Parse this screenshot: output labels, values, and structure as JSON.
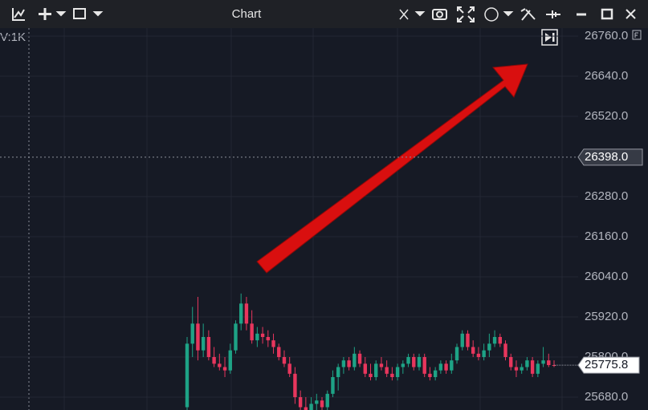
{
  "toolbar": {
    "title": "Chart"
  },
  "chart_data": {
    "type": "candlestick",
    "legend_text": "V:1K",
    "categories": [
      null,
      null,
      null,
      null,
      null,
      null,
      null,
      null,
      null,
      null,
      null,
      null,
      null,
      null,
      null,
      null,
      null,
      null,
      null,
      null,
      null,
      null,
      null,
      null,
      null,
      null,
      null,
      null,
      null,
      null,
      null,
      null,
      null,
      null,
      null,
      null,
      null,
      null,
      null,
      null,
      null,
      null,
      null,
      null,
      null,
      null,
      null,
      null,
      null,
      null,
      null,
      null,
      null,
      null,
      null,
      null,
      null,
      null,
      null,
      null,
      null,
      null,
      null,
      null,
      null,
      null,
      null,
      null,
      null
    ],
    "open": [
      25650,
      25840,
      25900,
      25820,
      25860,
      25800,
      25780,
      25770,
      25760,
      25820,
      25900,
      25960,
      25900,
      25850,
      25870,
      25860,
      25850,
      25830,
      25800,
      25780,
      25750,
      25680,
      25650,
      25640,
      25660,
      25670,
      25650,
      25690,
      25740,
      25770,
      25790,
      25770,
      25810,
      25780,
      25750,
      25740,
      25780,
      25770,
      25750,
      25740,
      25770,
      25780,
      25800,
      25770,
      25800,
      25750,
      25740,
      25760,
      25780,
      25760,
      25790,
      25830,
      25870,
      25830,
      25810,
      25800,
      25820,
      25840,
      25860,
      25840,
      25800,
      25770,
      25760,
      25770,
      25790,
      25750,
      25780,
      25790,
      25776
    ],
    "high": [
      25860,
      25950,
      25980,
      25900,
      25880,
      25830,
      25810,
      25800,
      25840,
      25910,
      25990,
      25980,
      25940,
      25890,
      25890,
      25880,
      25870,
      25840,
      25820,
      25800,
      25770,
      25700,
      25680,
      25680,
      25690,
      25680,
      25700,
      25760,
      25780,
      25800,
      25800,
      25830,
      25820,
      25800,
      25780,
      25790,
      25800,
      25790,
      25770,
      25780,
      25790,
      25810,
      25810,
      25810,
      25810,
      25770,
      25770,
      25790,
      25790,
      25810,
      25840,
      25880,
      25880,
      25850,
      25830,
      25840,
      25870,
      25880,
      25870,
      25850,
      25810,
      25790,
      25780,
      25800,
      25800,
      25790,
      25830,
      25810,
      25790
    ],
    "low": [
      25640,
      25800,
      25790,
      25800,
      25790,
      25770,
      25760,
      25740,
      25750,
      25810,
      25880,
      25880,
      25840,
      25830,
      25840,
      25830,
      25810,
      25790,
      25770,
      25740,
      25660,
      25640,
      25630,
      25630,
      25640,
      25640,
      25640,
      25680,
      25700,
      25750,
      25760,
      25760,
      25770,
      25740,
      25730,
      25730,
      25760,
      25740,
      25730,
      25730,
      25750,
      25770,
      25760,
      25760,
      25740,
      25730,
      25730,
      25750,
      25750,
      25750,
      25780,
      25820,
      25820,
      25800,
      25790,
      25790,
      25800,
      25830,
      25830,
      25790,
      25760,
      25740,
      25750,
      25760,
      25740,
      25740,
      25770,
      25770,
      25770
    ],
    "close": [
      25840,
      25900,
      25820,
      25860,
      25800,
      25780,
      25770,
      25760,
      25820,
      25900,
      25960,
      25900,
      25850,
      25870,
      25860,
      25850,
      25830,
      25800,
      25780,
      25750,
      25680,
      25650,
      25640,
      25660,
      25670,
      25650,
      25690,
      25740,
      25770,
      25790,
      25770,
      25810,
      25780,
      25750,
      25740,
      25780,
      25770,
      25750,
      25740,
      25770,
      25780,
      25800,
      25770,
      25800,
      25750,
      25740,
      25760,
      25780,
      25760,
      25790,
      25830,
      25870,
      25830,
      25810,
      25800,
      25820,
      25840,
      25860,
      25840,
      25800,
      25770,
      25760,
      25770,
      25790,
      25750,
      25780,
      25790,
      25776,
      25775.8
    ],
    "up_color": "#1ea386",
    "down_color": "#e8365d",
    "ylim": [
      25641.6,
      26784
    ],
    "yticks": [
      {
        "value": 26760,
        "label": "26760.0"
      },
      {
        "value": 26640,
        "label": "26640.0"
      },
      {
        "value": 26520,
        "label": "26520.0"
      },
      {
        "value": 26280,
        "label": "26280.0"
      },
      {
        "value": 26160,
        "label": "26160.0"
      },
      {
        "value": 26040,
        "label": "26040.0"
      },
      {
        "value": 25920,
        "label": "25920.0"
      },
      {
        "value": 25800,
        "label": "25800.0"
      },
      {
        "value": 25680,
        "label": "25680.0"
      }
    ],
    "crosshair_price": {
      "value": 26398,
      "label": "26398.0"
    },
    "last_price": 25775.8,
    "grid": true
  }
}
